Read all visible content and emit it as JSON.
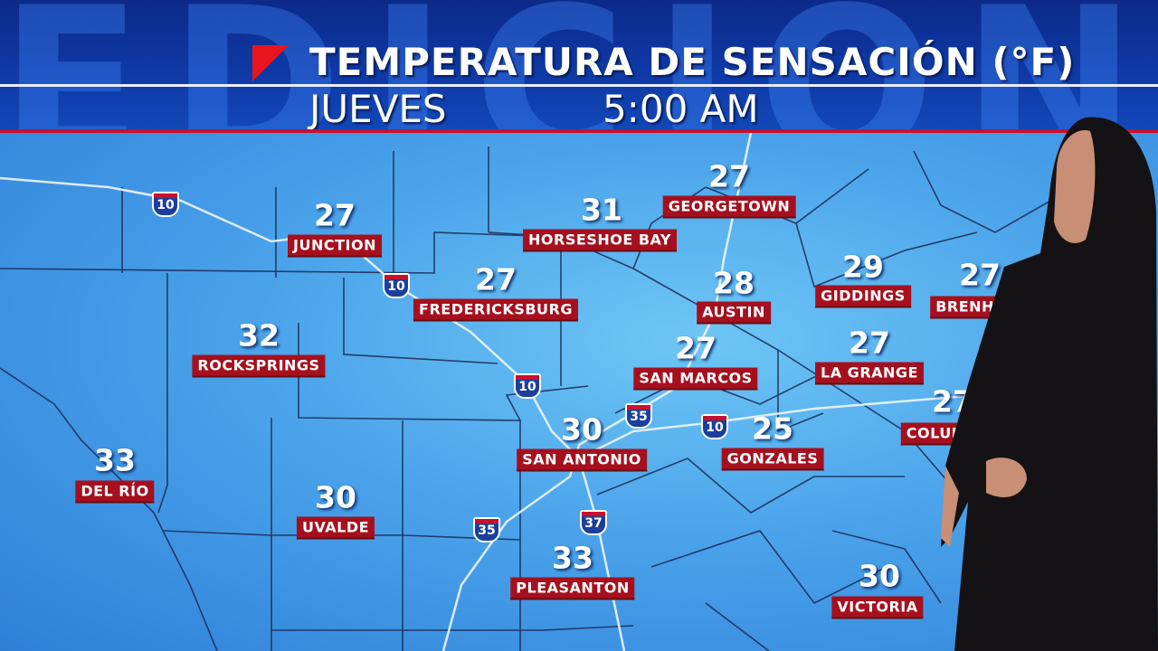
{
  "header": {
    "background_word": "EDICION",
    "title": "TEMPERATURA DE SENSACIÓN (°F)",
    "day": "JUEVES",
    "time": "5:00 AM"
  },
  "colors": {
    "header_blue": "#0f3aa8",
    "label_red": "#a6101e",
    "accent_red": "#e8141e",
    "map_blue": "#4aa3ea"
  },
  "cities": [
    {
      "name": "JUNCTION",
      "temp": "27"
    },
    {
      "name": "HORSESHOE BAY",
      "temp": "31"
    },
    {
      "name": "GEORGETOWN",
      "temp": "27"
    },
    {
      "name": "FREDERICKSBURG",
      "temp": "27"
    },
    {
      "name": "AUSTIN",
      "temp": "28"
    },
    {
      "name": "GIDDINGS",
      "temp": "29"
    },
    {
      "name": "BRENHA",
      "temp": "27"
    },
    {
      "name": "ROCKSPRINGS",
      "temp": "32"
    },
    {
      "name": "SAN MARCOS",
      "temp": "27"
    },
    {
      "name": "LA GRANGE",
      "temp": "27"
    },
    {
      "name": "COLUM",
      "temp": "27"
    },
    {
      "name": "DEL RÍO",
      "temp": "33"
    },
    {
      "name": "SAN ANTONIO",
      "temp": "30"
    },
    {
      "name": "GONZALES",
      "temp": "25"
    },
    {
      "name": "UVALDE",
      "temp": "30"
    },
    {
      "name": "PLEASANTON",
      "temp": "33"
    },
    {
      "name": "VICTORIA",
      "temp": "30"
    }
  ],
  "interstates": [
    "10",
    "10",
    "10",
    "10",
    "35",
    "35",
    "37"
  ]
}
